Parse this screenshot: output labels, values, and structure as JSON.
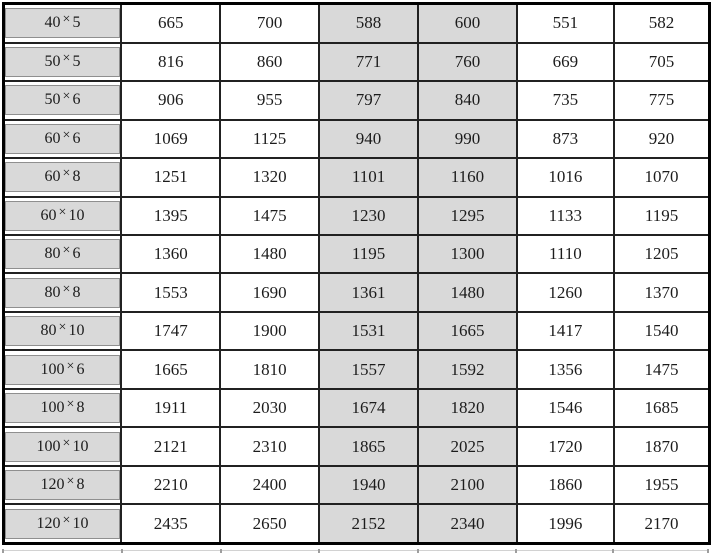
{
  "table": {
    "description": "size-versus-values data table",
    "multiply_sign": "×",
    "shaded_value_column_indexes": [
      2,
      3
    ],
    "rows": [
      {
        "label": "40×5",
        "values": [
          "665",
          "700",
          "588",
          "600",
          "551",
          "582"
        ]
      },
      {
        "label": "50×5",
        "values": [
          "816",
          "860",
          "771",
          "760",
          "669",
          "705"
        ]
      },
      {
        "label": "50×6",
        "values": [
          "906",
          "955",
          "797",
          "840",
          "735",
          "775"
        ]
      },
      {
        "label": "60×6",
        "values": [
          "1069",
          "1125",
          "940",
          "990",
          "873",
          "920"
        ]
      },
      {
        "label": "60×8",
        "values": [
          "1251",
          "1320",
          "1101",
          "1160",
          "1016",
          "1070"
        ]
      },
      {
        "label": "60×10",
        "values": [
          "1395",
          "1475",
          "1230",
          "1295",
          "1133",
          "1195"
        ]
      },
      {
        "label": "80×6",
        "values": [
          "1360",
          "1480",
          "1195",
          "1300",
          "1110",
          "1205"
        ]
      },
      {
        "label": "80×8",
        "values": [
          "1553",
          "1690",
          "1361",
          "1480",
          "1260",
          "1370"
        ]
      },
      {
        "label": "80×10",
        "values": [
          "1747",
          "1900",
          "1531",
          "1665",
          "1417",
          "1540"
        ]
      },
      {
        "label": "100×6",
        "values": [
          "1665",
          "1810",
          "1557",
          "1592",
          "1356",
          "1475"
        ]
      },
      {
        "label": "100×8",
        "values": [
          "1911",
          "2030",
          "1674",
          "1820",
          "1546",
          "1685"
        ]
      },
      {
        "label": "100×10",
        "values": [
          "2121",
          "2310",
          "1865",
          "2025",
          "1720",
          "1870"
        ]
      },
      {
        "label": "120×8",
        "values": [
          "2210",
          "2400",
          "1940",
          "2100",
          "1860",
          "1955"
        ]
      },
      {
        "label": "120×10",
        "values": [
          "2435",
          "2650",
          "2152",
          "2340",
          "1996",
          "2170"
        ]
      }
    ]
  },
  "colors": {
    "shaded_cell": "#d9d9d9",
    "label_box_border": "#8f8f8f",
    "grid": "#212121",
    "outer_border": "#000000"
  }
}
